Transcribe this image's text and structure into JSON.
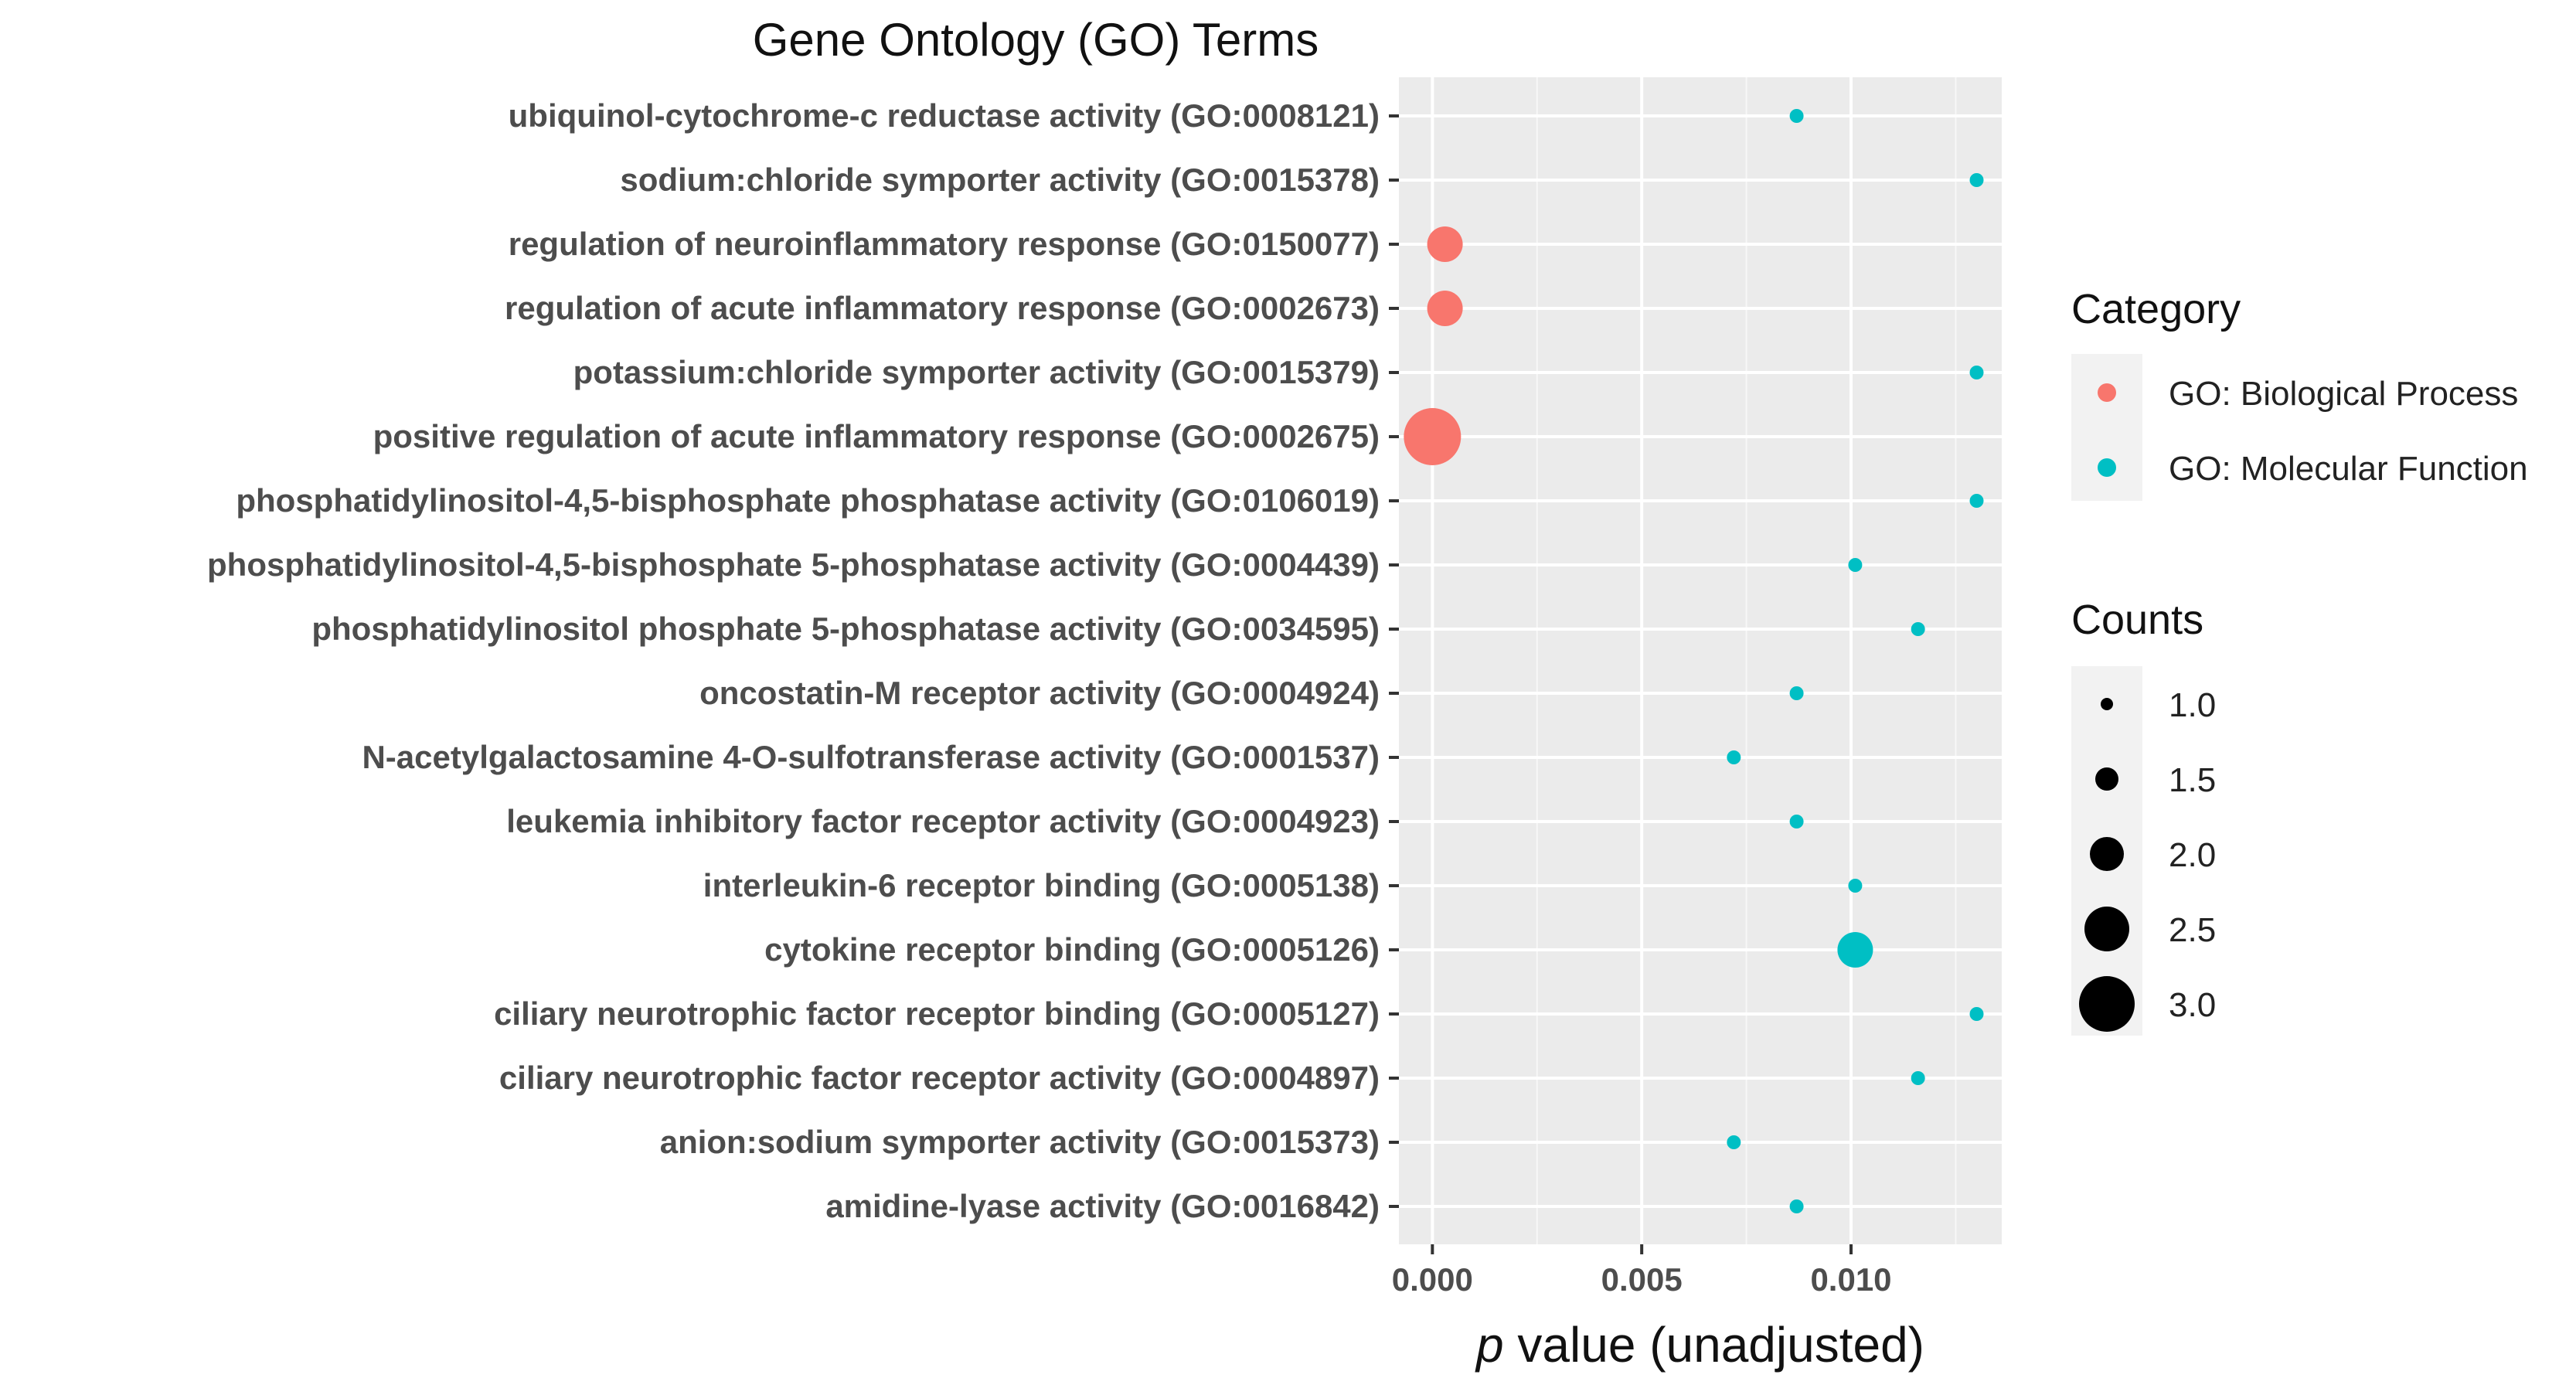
{
  "chart_data": {
    "type": "scatter",
    "title": "Gene Ontology (GO) Terms",
    "xlabel_italic": "p",
    "xlabel_rest": " value (unadjusted)",
    "ylabel": "",
    "xlim": [
      -0.0008,
      0.0136
    ],
    "x_ticks": [
      0.0,
      0.005,
      0.01
    ],
    "x_tick_labels": [
      "0.000",
      "0.005",
      "0.010"
    ],
    "grid": true,
    "legend_position": "right",
    "legend": {
      "category_title": "Category",
      "categories": [
        {
          "name": "GO: Biological Process",
          "color": "#F8766D"
        },
        {
          "name": "GO: Molecular Function",
          "color": "#00BFC4"
        }
      ],
      "size_title": "Counts",
      "size_levels": [
        {
          "value": 1.0,
          "label": "1.0"
        },
        {
          "value": 1.5,
          "label": "1.5"
        },
        {
          "value": 2.0,
          "label": "2.0"
        },
        {
          "value": 2.5,
          "label": "2.5"
        },
        {
          "value": 3.0,
          "label": "3.0"
        }
      ]
    },
    "points": [
      {
        "term": "ubiquinol-cytochrome-c reductase activity (GO:0008121)",
        "p": 0.0087,
        "count": 1,
        "category": "GO: Molecular Function"
      },
      {
        "term": "sodium:chloride symporter activity (GO:0015378)",
        "p": 0.013,
        "count": 1,
        "category": "GO: Molecular Function"
      },
      {
        "term": "regulation of neuroinflammatory response (GO:0150077)",
        "p": 0.0003,
        "count": 2,
        "category": "GO: Biological Process"
      },
      {
        "term": "regulation of acute inflammatory response (GO:0002673)",
        "p": 0.0003,
        "count": 2,
        "category": "GO: Biological Process"
      },
      {
        "term": "potassium:chloride symporter activity (GO:0015379)",
        "p": 0.013,
        "count": 1,
        "category": "GO: Molecular Function"
      },
      {
        "term": "positive regulation of acute inflammatory response (GO:0002675)",
        "p": 0.0,
        "count": 3,
        "category": "GO: Biological Process"
      },
      {
        "term": "phosphatidylinositol-4,5-bisphosphate phosphatase activity (GO:0106019)",
        "p": 0.013,
        "count": 1,
        "category": "GO: Molecular Function"
      },
      {
        "term": "phosphatidylinositol-4,5-bisphosphate 5-phosphatase activity (GO:0004439)",
        "p": 0.0101,
        "count": 1,
        "category": "GO: Molecular Function"
      },
      {
        "term": "phosphatidylinositol phosphate 5-phosphatase activity (GO:0034595)",
        "p": 0.0116,
        "count": 1,
        "category": "GO: Molecular Function"
      },
      {
        "term": "oncostatin-M receptor activity (GO:0004924)",
        "p": 0.0087,
        "count": 1,
        "category": "GO: Molecular Function"
      },
      {
        "term": "N-acetylgalactosamine 4-O-sulfotransferase activity (GO:0001537)",
        "p": 0.0072,
        "count": 1,
        "category": "GO: Molecular Function"
      },
      {
        "term": "leukemia inhibitory factor receptor activity (GO:0004923)",
        "p": 0.0087,
        "count": 1,
        "category": "GO: Molecular Function"
      },
      {
        "term": "interleukin-6 receptor binding (GO:0005138)",
        "p": 0.0101,
        "count": 1,
        "category": "GO: Molecular Function"
      },
      {
        "term": "cytokine receptor binding (GO:0005126)",
        "p": 0.0101,
        "count": 2,
        "category": "GO: Molecular Function"
      },
      {
        "term": "ciliary neurotrophic factor receptor binding (GO:0005127)",
        "p": 0.013,
        "count": 1,
        "category": "GO: Molecular Function"
      },
      {
        "term": "ciliary neurotrophic factor receptor activity (GO:0004897)",
        "p": 0.0116,
        "count": 1,
        "category": "GO: Molecular Function"
      },
      {
        "term": "anion:sodium symporter activity (GO:0015373)",
        "p": 0.0072,
        "count": 1,
        "category": "GO: Molecular Function"
      },
      {
        "term": "amidine-lyase activity (GO:0016842)",
        "p": 0.0087,
        "count": 1,
        "category": "GO: Molecular Function"
      }
    ]
  }
}
